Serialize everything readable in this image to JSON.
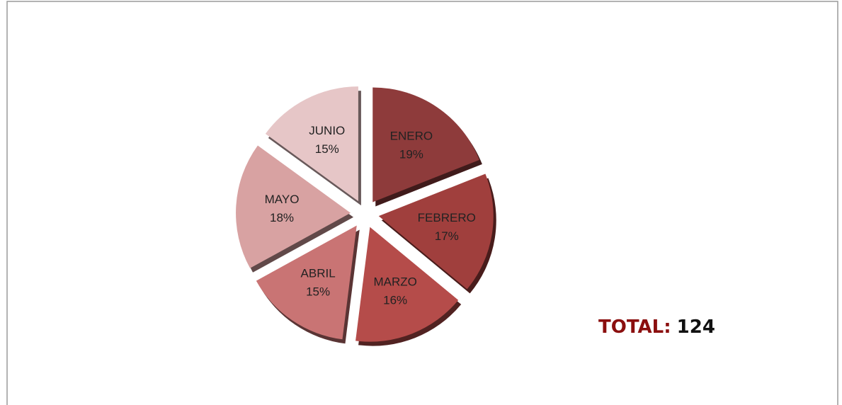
{
  "chart_data": {
    "type": "pie",
    "categories": [
      "ENERO",
      "FEBRERO",
      "MARZO",
      "ABRIL",
      "MAYO",
      "JUNIO"
    ],
    "values": [
      19,
      17,
      16,
      15,
      18,
      15
    ],
    "value_labels": [
      "19%",
      "17%",
      "16%",
      "15%",
      "18%",
      "15%"
    ],
    "colors": [
      "#8e3b3b",
      "#a03f3d",
      "#b54c4a",
      "#c97474",
      "#d8a2a2",
      "#e6c6c7"
    ],
    "annotation": {
      "label": "TOTAL:",
      "value": 124
    }
  }
}
